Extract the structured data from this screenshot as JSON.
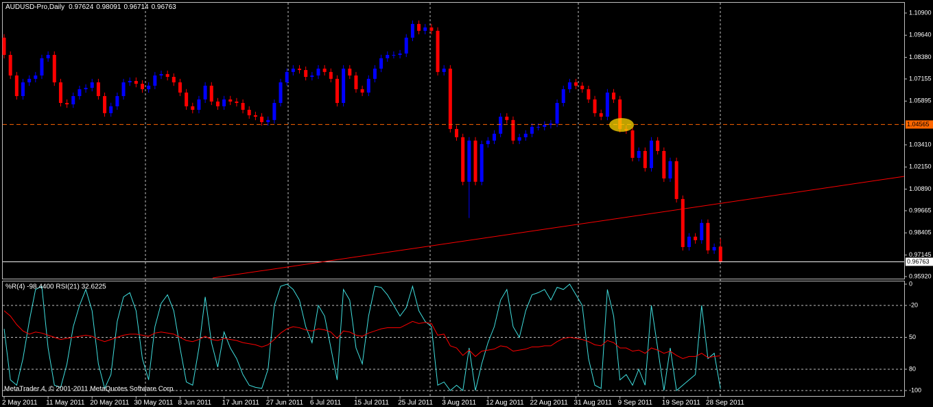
{
  "chart_data": [
    {
      "type": "candlestick",
      "title": "AUDUSD-Pro,Daily",
      "categories": [
        "2 May 2011",
        null,
        null,
        null,
        null,
        null,
        null,
        "11 May 2011",
        null,
        null,
        null,
        null,
        null,
        null,
        "20 May 2011",
        null,
        null,
        null,
        null,
        null,
        null,
        "30 May 2011",
        null,
        null,
        null,
        null,
        null,
        null,
        "8 Jun 2011",
        null,
        null,
        null,
        null,
        null,
        null,
        "17 Jun 2011",
        null,
        null,
        null,
        null,
        null,
        null,
        "27 Jun 2011",
        null,
        null,
        null,
        null,
        null,
        null,
        "6 Jul 2011",
        null,
        null,
        null,
        null,
        null,
        null,
        "15 Jul 2011",
        null,
        null,
        null,
        null,
        null,
        null,
        "25 Jul 2011",
        null,
        null,
        null,
        null,
        null,
        null,
        "3 Aug 2011",
        null,
        null,
        null,
        null,
        null,
        null,
        "12 Aug 2011",
        null,
        null,
        null,
        null,
        null,
        null,
        "22 Aug 2011",
        null,
        null,
        null,
        null,
        null,
        null,
        "31 Aug 2011",
        null,
        null,
        null,
        null,
        null,
        null,
        "9 Sep 2011",
        null,
        null,
        null,
        null,
        null,
        null,
        "19 Sep 2011",
        null,
        null,
        null,
        null,
        null,
        null,
        "28 Sep 2011",
        null,
        null
      ],
      "open": [
        1.095,
        1.0852,
        1.0735,
        1.0618,
        1.0696,
        1.0716,
        1.0735,
        1.0833,
        1.0852,
        1.0696,
        1.0579,
        1.0571,
        1.0618,
        1.0657,
        1.0665,
        1.0696,
        1.0618,
        1.0521,
        1.056,
        1.0618,
        1.0696,
        1.0704,
        1.0688,
        1.0657,
        1.0677,
        1.0735,
        1.0743,
        1.0727,
        1.0696,
        1.0638,
        1.056,
        1.054,
        1.0599,
        1.0677,
        1.0587,
        1.056,
        1.0599,
        1.0587,
        1.0579,
        1.054,
        1.0509,
        1.0501,
        1.047,
        1.0482,
        1.0579,
        1.0696,
        1.0755,
        1.0774,
        1.0766,
        1.0727,
        1.0735,
        1.0774,
        1.0755,
        1.0716,
        1.0579,
        1.0774,
        1.0735,
        1.0657,
        1.0638,
        1.0716,
        1.0774,
        1.0833,
        1.0852,
        1.0852,
        1.086,
        1.095,
        1.1028,
        1.0989,
        1.1008,
        1.0989,
        1.0755,
        1.0774,
        1.0431,
        1.0384,
        1.0131,
        1.0365,
        1.0131,
        1.0345,
        1.0365,
        1.0404,
        1.0501,
        1.0482,
        1.0365,
        1.0384,
        1.0404,
        1.0443,
        1.0443,
        1.0454,
        1.0462,
        1.0579,
        1.0657,
        1.0696,
        1.0677,
        1.0657,
        1.0599,
        1.0521,
        1.0501,
        1.0638,
        1.0599,
        1.0431,
        1.0423,
        1.0267,
        1.0306,
        1.0209,
        1.0365,
        1.0306,
        1.015,
        1.0248,
        1.0033,
        0.976,
        0.9819,
        0.9799,
        0.9897,
        0.9741,
        0.97624
      ],
      "high": [
        1.097,
        1.0872,
        1.0755,
        1.0716,
        1.0736,
        1.0755,
        1.0853,
        1.0872,
        1.0872,
        1.0716,
        1.0599,
        1.0638,
        1.0677,
        1.0685,
        1.0716,
        1.0716,
        1.0638,
        1.058,
        1.0638,
        1.0716,
        1.0724,
        1.0724,
        1.0708,
        1.0697,
        1.0755,
        1.0763,
        1.0763,
        1.0747,
        1.0716,
        1.0658,
        1.058,
        1.0619,
        1.0697,
        1.0697,
        1.0607,
        1.0619,
        1.0619,
        1.0607,
        1.0599,
        1.056,
        1.0529,
        1.0521,
        1.0502,
        1.0599,
        1.0716,
        1.0775,
        1.0794,
        1.0794,
        1.0786,
        1.0755,
        1.0794,
        1.0794,
        1.0775,
        1.0736,
        1.0794,
        1.0794,
        1.0755,
        1.0677,
        1.0736,
        1.0794,
        1.0853,
        1.0872,
        1.0872,
        1.088,
        1.097,
        1.1048,
        1.1048,
        1.1028,
        1.1028,
        1.1009,
        1.0794,
        1.0794,
        1.0451,
        1.0404,
        1.0385,
        1.0385,
        1.0365,
        1.0385,
        1.0424,
        1.0521,
        1.0521,
        1.0502,
        1.0404,
        1.0424,
        1.0463,
        1.0463,
        1.0474,
        1.0482,
        1.0599,
        1.0677,
        1.0716,
        1.0716,
        1.0697,
        1.0677,
        1.0619,
        1.0541,
        1.0658,
        1.0658,
        1.0619,
        1.0451,
        1.0443,
        1.0326,
        1.0326,
        1.0385,
        1.0385,
        1.0326,
        1.0268,
        1.0268,
        1.0053,
        0.9839,
        0.9839,
        0.9917,
        0.9917,
        0.978,
        0.98091
      ],
      "low": [
        1.0832,
        1.0715,
        1.0598,
        1.0598,
        1.0676,
        1.0696,
        1.0715,
        1.0813,
        1.0676,
        1.0559,
        1.0551,
        1.0551,
        1.0598,
        1.0637,
        1.0645,
        1.0598,
        1.0501,
        1.0501,
        1.054,
        1.0598,
        1.0676,
        1.0668,
        1.0637,
        1.0637,
        1.0657,
        1.0715,
        1.0707,
        1.0676,
        1.0618,
        1.054,
        1.052,
        1.052,
        1.0579,
        1.0567,
        1.054,
        1.054,
        1.0567,
        1.0559,
        1.052,
        1.0489,
        1.0481,
        1.045,
        1.045,
        1.0462,
        1.0559,
        1.0676,
        1.0735,
        1.0746,
        1.0707,
        1.0707,
        1.0715,
        1.0735,
        1.0696,
        1.0559,
        1.0559,
        1.0715,
        1.0637,
        1.0618,
        1.0618,
        1.0696,
        1.0754,
        1.0813,
        1.0832,
        1.0832,
        1.084,
        1.093,
        1.0969,
        1.0969,
        1.0969,
        1.0735,
        1.0735,
        1.0411,
        1.0364,
        1.0111,
        0.9925,
        1.0111,
        1.0111,
        1.0325,
        1.0345,
        1.0384,
        1.0462,
        1.0345,
        1.0345,
        1.0364,
        1.0384,
        1.0423,
        1.0423,
        1.0434,
        1.0442,
        1.0559,
        1.0637,
        1.0657,
        1.0637,
        1.0579,
        1.0501,
        1.0481,
        1.0481,
        1.0579,
        1.0411,
        1.0403,
        1.0247,
        1.0247,
        1.0189,
        1.0189,
        1.0286,
        1.013,
        1.013,
        1.0013,
        0.974,
        0.974,
        0.9779,
        0.9779,
        0.9721,
        0.9721,
        0.96714
      ],
      "close": [
        1.0852,
        1.0735,
        1.0618,
        1.0696,
        1.0716,
        1.0735,
        1.0833,
        1.0852,
        1.0696,
        1.0579,
        1.0571,
        1.0618,
        1.0657,
        1.0665,
        1.0696,
        1.0618,
        1.0521,
        1.056,
        1.0618,
        1.0696,
        1.0704,
        1.0688,
        1.0657,
        1.0677,
        1.0735,
        1.0743,
        1.0727,
        1.0696,
        1.0638,
        1.056,
        1.054,
        1.0599,
        1.0677,
        1.0587,
        1.056,
        1.0599,
        1.0587,
        1.0579,
        1.054,
        1.0509,
        1.0501,
        1.047,
        1.0482,
        1.0579,
        1.0696,
        1.0755,
        1.0774,
        1.0766,
        1.0727,
        1.0735,
        1.0774,
        1.0755,
        1.0716,
        1.0579,
        1.0774,
        1.0735,
        1.0657,
        1.0638,
        1.0716,
        1.0774,
        1.0833,
        1.0852,
        1.0852,
        1.086,
        1.095,
        1.1028,
        1.0989,
        1.1008,
        1.0989,
        1.0755,
        1.0774,
        1.0431,
        1.0384,
        1.0131,
        1.0365,
        1.0131,
        1.0345,
        1.0365,
        1.0404,
        1.0501,
        1.0482,
        1.0365,
        1.0384,
        1.0404,
        1.0443,
        1.0443,
        1.0454,
        1.0462,
        1.0579,
        1.0657,
        1.0696,
        1.0677,
        1.0657,
        1.0599,
        1.0521,
        1.0501,
        1.0638,
        1.0599,
        1.0431,
        1.0423,
        1.0267,
        1.0306,
        1.0209,
        1.0365,
        1.0306,
        1.015,
        1.0248,
        1.0033,
        0.976,
        0.9819,
        0.9799,
        0.9897,
        0.9741,
        0.976,
        0.96763
      ],
      "up_color": "#0000ff",
      "down_color": "#ff0000",
      "ylim": [
        0.95803,
        1.11524
      ],
      "yticks": [
        {
          "value": 1.109,
          "label": "1.10900"
        },
        {
          "value": 1.0964,
          "label": "1.09640"
        },
        {
          "value": 1.0838,
          "label": "1.08380"
        },
        {
          "value": 1.07155,
          "label": "1.07155"
        },
        {
          "value": 1.05895,
          "label": "1.05895"
        },
        {
          "value": 1.0341,
          "label": "1.03410"
        },
        {
          "value": 1.0215,
          "label": "1.02150"
        },
        {
          "value": 1.0089,
          "label": "1.00890"
        },
        {
          "value": 0.99665,
          "label": "0.99665"
        },
        {
          "value": 0.98405,
          "label": "0.98405"
        },
        {
          "value": 0.97145,
          "label": "0.97145"
        },
        {
          "value": 0.9592,
          "label": "0.95920"
        }
      ],
      "hlines": [
        {
          "value": 1.04565,
          "label": "1.04565",
          "color": "#ff6600",
          "dashed": true
        },
        {
          "value": 0.96763,
          "label": "0.96763",
          "color": "#ffffff",
          "dashed": false
        }
      ]
    },
    {
      "type": "line",
      "title": "%R(4) -98.4400  RSI(21) 32.6225",
      "annotation": "MetaTrader 4, © 2001-2011 MetaQuotes Software Corp.",
      "series": [
        {
          "color": "#40e0e0",
          "values": [
            -42,
            -90,
            -95,
            -70,
            -35,
            -5,
            -2,
            -60,
            -95,
            -97,
            -75,
            -40,
            -20,
            -5,
            -25,
            -75,
            -98,
            -85,
            -35,
            -12,
            -8,
            -25,
            -70,
            -90,
            -40,
            -18,
            -10,
            -25,
            -60,
            -92,
            -95,
            -60,
            -12,
            -55,
            -78,
            -45,
            -60,
            -70,
            -85,
            -95,
            -97,
            -98,
            -80,
            -20,
            -2,
            0,
            -5,
            -15,
            -40,
            -55,
            -20,
            -30,
            -60,
            -90,
            -5,
            -15,
            -60,
            -75,
            -30,
            -2,
            -3,
            -10,
            -20,
            -30,
            -22,
            -2,
            -25,
            -35,
            -40,
            -95,
            -92,
            -100,
            -95,
            -100,
            -60,
            -100,
            -75,
            -55,
            -40,
            -15,
            -5,
            -40,
            -50,
            -25,
            -10,
            -8,
            -5,
            -15,
            -3,
            -5,
            0,
            -10,
            -20,
            -70,
            -95,
            -98,
            -5,
            -30,
            -90,
            -85,
            -95,
            -80,
            -95,
            -20,
            -60,
            -100,
            -60,
            -100,
            -95,
            -90,
            -85,
            -20,
            -70,
            -65,
            -98.44
          ]
        },
        {
          "color": "#ff0000",
          "values": [
            -25,
            -30,
            -38,
            -44,
            -47,
            -45,
            -46,
            -48,
            -50,
            -52,
            -51,
            -50,
            -49,
            -48,
            -49,
            -52,
            -54,
            -52,
            -50,
            -48,
            -47,
            -47,
            -48,
            -49,
            -46,
            -45,
            -46,
            -47,
            -50,
            -53,
            -54,
            -52,
            -49,
            -52,
            -53,
            -51,
            -52,
            -53,
            -55,
            -56,
            -57,
            -59,
            -57,
            -52,
            -46,
            -42,
            -40,
            -41,
            -43,
            -44,
            -42,
            -43,
            -45,
            -51,
            -44,
            -45,
            -48,
            -49,
            -46,
            -44,
            -42,
            -41,
            -41,
            -41,
            -38,
            -35,
            -37,
            -36,
            -37,
            -48,
            -47,
            -58,
            -60,
            -67,
            -62,
            -68,
            -63,
            -62,
            -61,
            -58,
            -59,
            -63,
            -62,
            -61,
            -59,
            -59,
            -58,
            -58,
            -54,
            -51,
            -50,
            -51,
            -52,
            -54,
            -57,
            -58,
            -53,
            -55,
            -60,
            -60,
            -63,
            -62,
            -65,
            -60,
            -62,
            -65,
            -63,
            -67,
            -70,
            -68,
            -68,
            -65,
            -69,
            -68,
            -67.3775
          ]
        }
      ],
      "ylim": [
        -105.16,
        3.23
      ],
      "yticks": [
        0,
        -20,
        {
          "value": -50,
          "label": "50"
        },
        {
          "value": -80,
          "label": "80"
        },
        -100
      ],
      "grid": true
    }
  ]
}
